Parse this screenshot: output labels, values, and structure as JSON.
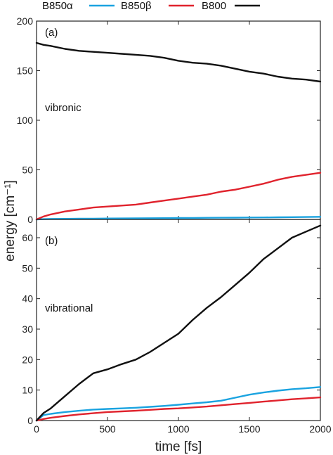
{
  "chart_data": {
    "type": "line",
    "legend": {
      "placement": "top",
      "entries": [
        {
          "name": "B850α",
          "color": "#1aa3e0"
        },
        {
          "name": "B850β",
          "color": "#e0232d"
        },
        {
          "name": "B800",
          "color": "#111111"
        }
      ]
    },
    "xlabel": "time [fs]",
    "ylabel": "energy [cm⁻¹]",
    "xlim": [
      0,
      2000
    ],
    "xticks": [
      0,
      500,
      1000,
      1500,
      2000
    ],
    "panels": [
      {
        "label": "(a)",
        "annotation": "vibronic",
        "ylim": [
          0,
          200
        ],
        "yticks": [
          0,
          50,
          100,
          150,
          200
        ],
        "x": [
          0,
          50,
          100,
          200,
          300,
          400,
          500,
          600,
          700,
          800,
          900,
          1000,
          1100,
          1200,
          1300,
          1400,
          1500,
          1600,
          1700,
          1800,
          1900,
          2000
        ],
        "series": [
          {
            "name": "B850α",
            "color": "#1aa3e0",
            "values": [
              0,
              0.3,
              0.5,
              0.6,
              0.7,
              0.8,
              0.9,
              1.0,
              1.1,
              1.2,
              1.3,
              1.4,
              1.5,
              1.6,
              1.7,
              1.8,
              1.9,
              2.0,
              2.1,
              2.3,
              2.4,
              2.6
            ]
          },
          {
            "name": "B850β",
            "color": "#e0232d",
            "values": [
              0,
              3,
              5,
              8,
              10,
              12,
              13,
              14,
              15,
              17,
              19,
              21,
              23,
              25,
              28,
              30,
              33,
              36,
              40,
              43,
              45,
              47
            ]
          },
          {
            "name": "B800",
            "color": "#111111",
            "values": [
              178,
              176,
              175,
              172,
              170,
              169,
              168,
              167,
              166,
              165,
              163,
              160,
              158,
              157,
              155,
              152,
              149,
              147,
              144,
              142,
              141,
              139
            ]
          }
        ]
      },
      {
        "label": "(b)",
        "annotation": "vibrational",
        "ylim": [
          0,
          66
        ],
        "yticks": [
          0,
          10,
          20,
          30,
          40,
          50,
          60
        ],
        "x": [
          0,
          50,
          100,
          200,
          300,
          400,
          500,
          600,
          700,
          800,
          900,
          1000,
          1100,
          1200,
          1300,
          1400,
          1500,
          1600,
          1700,
          1800,
          1900,
          2000
        ],
        "series": [
          {
            "name": "B850α",
            "color": "#1aa3e0",
            "values": [
              0,
              1.8,
              2.2,
              2.8,
              3.2,
              3.6,
              3.8,
              4.0,
              4.2,
              4.5,
              4.8,
              5.2,
              5.6,
              6.0,
              6.5,
              7.5,
              8.5,
              9.2,
              9.8,
              10.3,
              10.6,
              11.0
            ]
          },
          {
            "name": "B850β",
            "color": "#e0232d",
            "values": [
              0,
              0.5,
              0.9,
              1.5,
              2.0,
              2.4,
              2.8,
              3.0,
              3.2,
              3.5,
              3.8,
              4.0,
              4.3,
              4.6,
              5.0,
              5.4,
              5.8,
              6.2,
              6.6,
              7.0,
              7.3,
              7.6
            ]
          },
          {
            "name": "B800",
            "color": "#111111",
            "values": [
              0,
              2.5,
              4.0,
              8.0,
              12.0,
              15.5,
              16.8,
              18.5,
              20.0,
              22.5,
              25.5,
              28.5,
              33.0,
              37.0,
              40.5,
              44.5,
              48.5,
              53.0,
              56.5,
              60.0,
              62.0,
              64.0
            ]
          }
        ]
      }
    ]
  }
}
